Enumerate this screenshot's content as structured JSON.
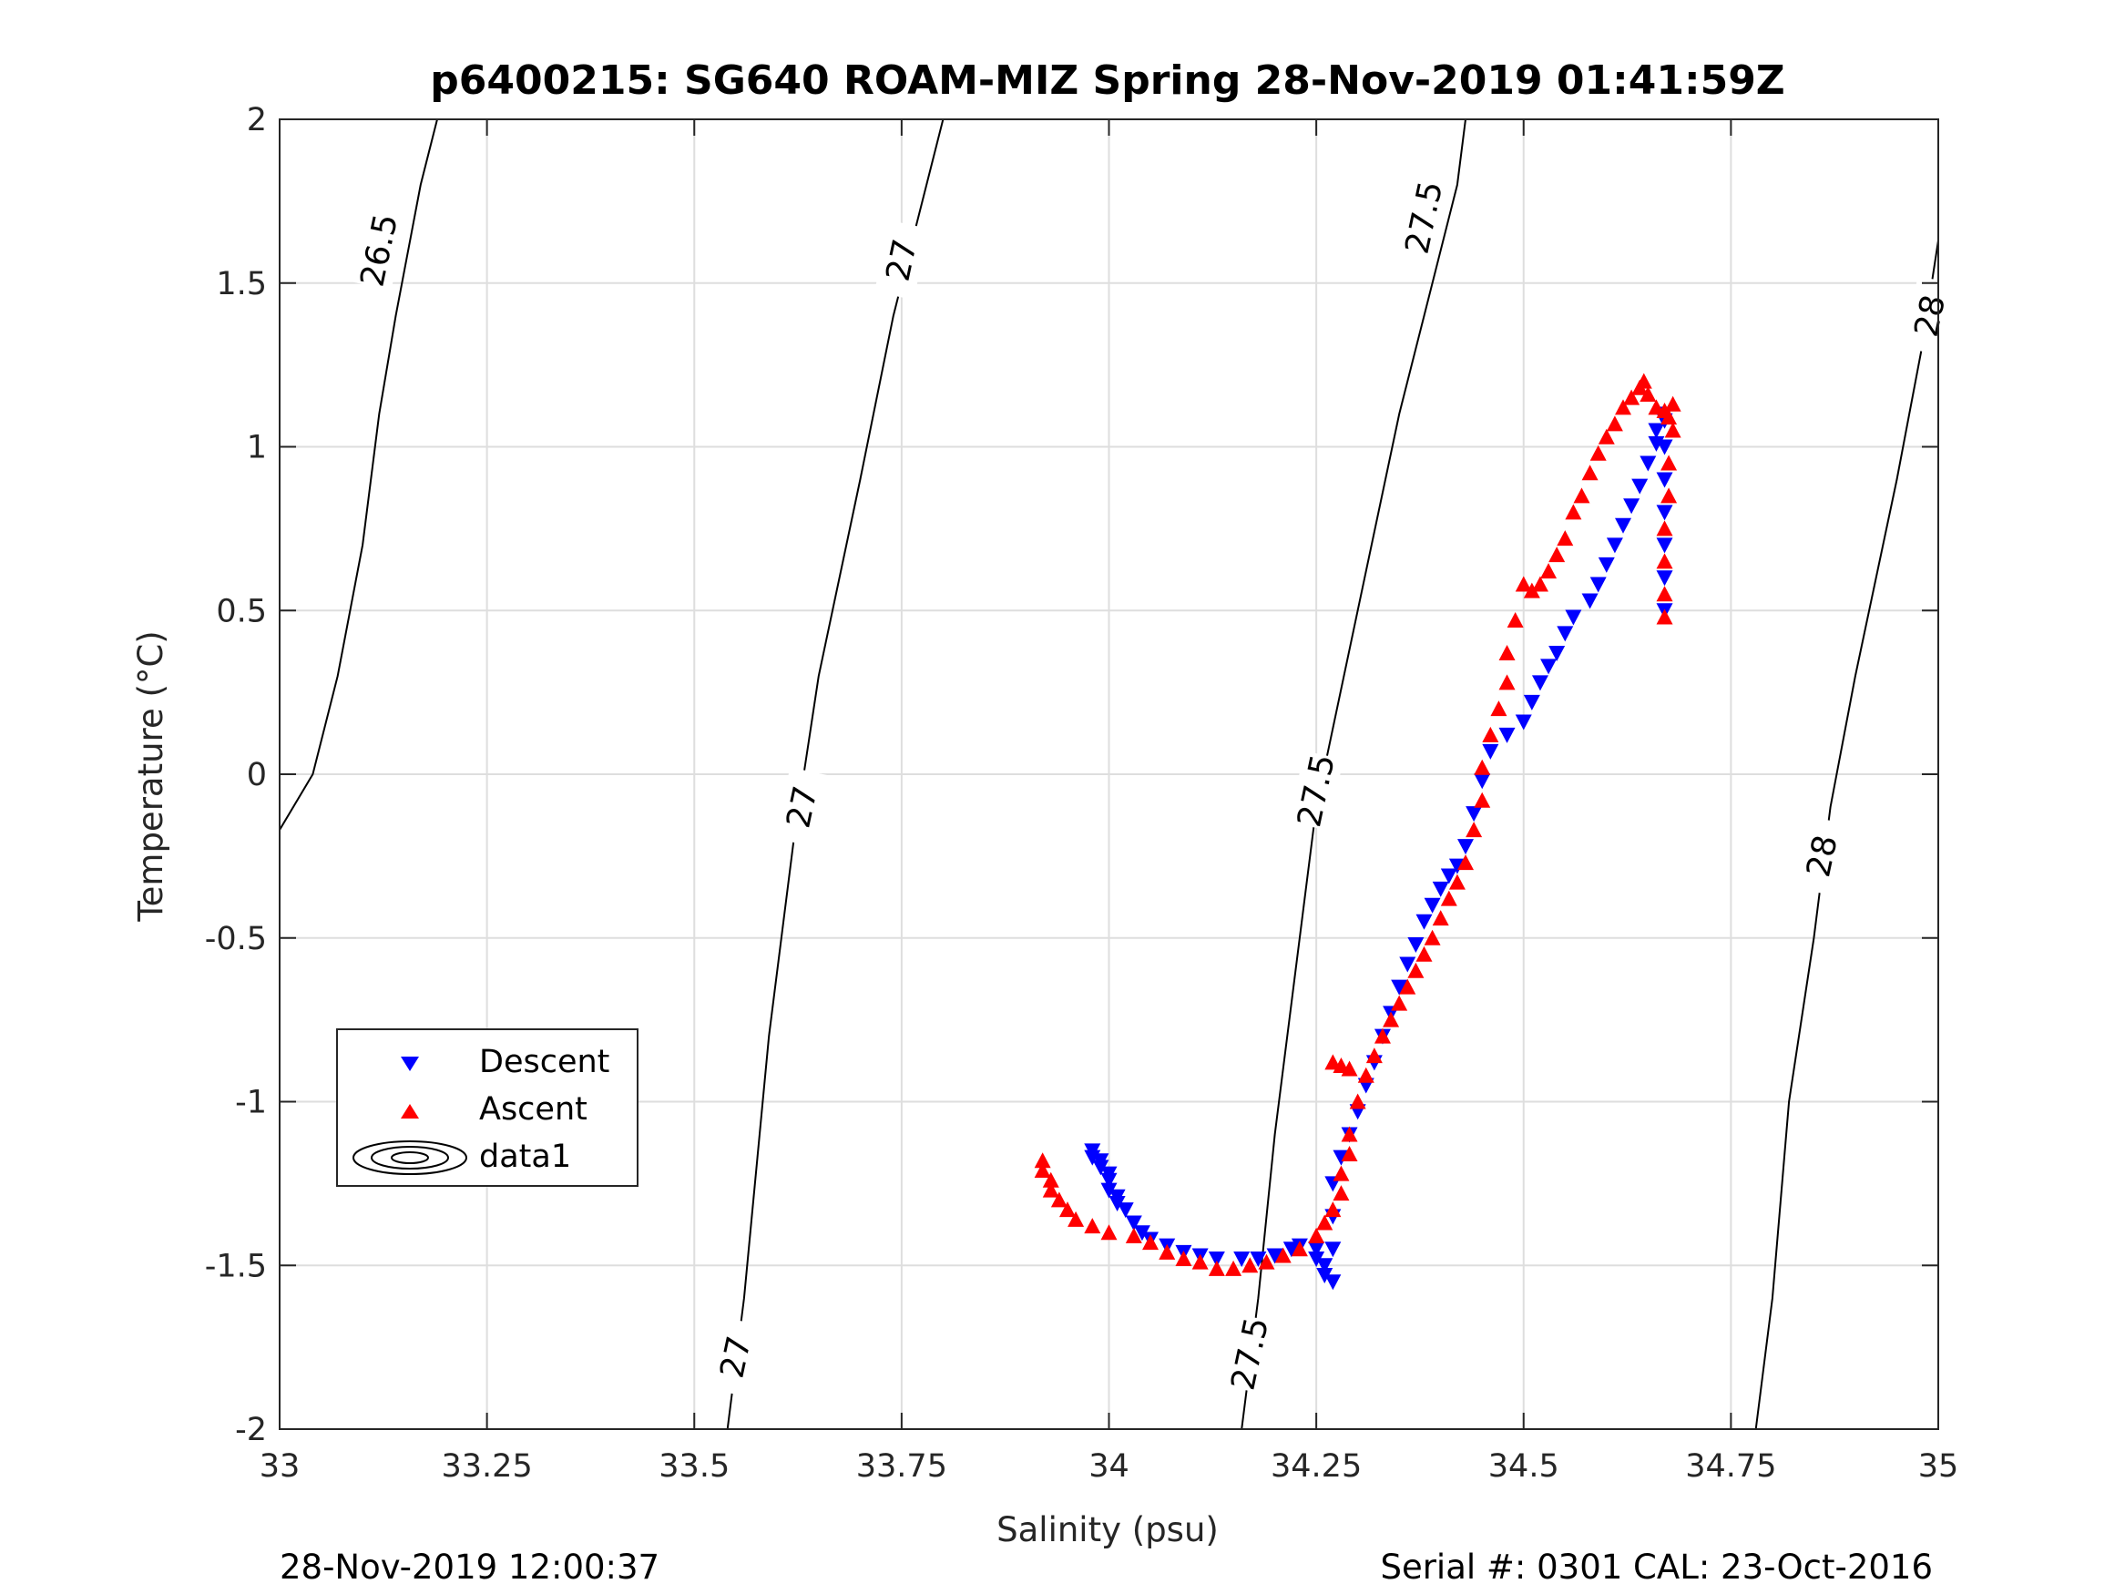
{
  "chart_data": {
    "type": "scatter",
    "title": "p6400215: SG640 ROAM-MIZ Spring 28-Nov-2019 01:41:59Z",
    "xlabel": "Salinity (psu)",
    "ylabel": "Temperature (°C)",
    "xlim": [
      33,
      35
    ],
    "ylim": [
      -2,
      2
    ],
    "grid": true,
    "xticks": [
      33,
      33.25,
      33.5,
      33.75,
      34,
      34.25,
      34.5,
      34.75,
      35
    ],
    "xtick_labels": [
      "33",
      "33.25",
      "33.5",
      "33.75",
      "34",
      "34.25",
      "34.5",
      "34.75",
      "35"
    ],
    "yticks": [
      2,
      1.5,
      1,
      0.5,
      0,
      -0.5,
      -1,
      -1.5,
      -2
    ],
    "ytick_labels": [
      "2",
      "1.5",
      "1",
      "0.5",
      "0",
      "-0.5",
      "-1",
      "-1.5",
      "-2"
    ],
    "legend": {
      "placement": "lower-left",
      "entries": [
        "Descent",
        "Ascent",
        "data1"
      ]
    },
    "density_contours": [
      {
        "label": "26.5",
        "points": [
          [
            33.0,
            -0.17
          ],
          [
            33.04,
            0.0
          ],
          [
            33.07,
            0.3
          ],
          [
            33.1,
            0.7
          ],
          [
            33.12,
            1.1
          ],
          [
            33.14,
            1.4
          ],
          [
            33.17,
            1.8
          ],
          [
            33.19,
            2.0
          ]
        ]
      },
      {
        "label": "27",
        "points": [
          [
            33.54,
            -2.0
          ],
          [
            33.56,
            -1.6
          ],
          [
            33.59,
            -0.8
          ],
          [
            33.62,
            -0.2
          ],
          [
            33.65,
            0.3
          ],
          [
            33.7,
            0.9
          ],
          [
            33.74,
            1.4
          ],
          [
            33.78,
            1.8
          ],
          [
            33.8,
            2.0
          ]
        ]
      },
      {
        "label": "27.5",
        "points": [
          [
            34.16,
            -2.0
          ],
          [
            34.18,
            -1.6
          ],
          [
            34.2,
            -1.1
          ],
          [
            34.23,
            -0.5
          ],
          [
            34.25,
            -0.1
          ],
          [
            34.3,
            0.5
          ],
          [
            34.35,
            1.1
          ],
          [
            34.38,
            1.4
          ],
          [
            34.42,
            1.8
          ],
          [
            34.43,
            2.0
          ]
        ]
      },
      {
        "label": "28",
        "points": [
          [
            34.78,
            -2.0
          ],
          [
            34.8,
            -1.6
          ],
          [
            34.82,
            -1.0
          ],
          [
            34.85,
            -0.5
          ],
          [
            34.87,
            -0.1
          ],
          [
            34.9,
            0.3
          ],
          [
            34.95,
            0.9
          ],
          [
            34.98,
            1.3
          ],
          [
            35.0,
            1.63
          ]
        ]
      }
    ],
    "contour_labels": [
      {
        "text": "26.5",
        "x": 33.12,
        "y": 1.6
      },
      {
        "text": "27",
        "x": 33.75,
        "y": 1.57
      },
      {
        "text": "27",
        "x": 33.63,
        "y": -0.1
      },
      {
        "text": "27",
        "x": 33.55,
        "y": -1.78
      },
      {
        "text": "27.5",
        "x": 34.38,
        "y": 1.7
      },
      {
        "text": "27.5",
        "x": 34.25,
        "y": -0.05
      },
      {
        "text": "27.5",
        "x": 34.17,
        "y": -1.77
      },
      {
        "text": "28",
        "x": 34.99,
        "y": 1.4
      },
      {
        "text": "28",
        "x": 34.86,
        "y": -0.25
      }
    ],
    "series": [
      {
        "name": "Descent",
        "marker": "triangle-down",
        "color": "#0000ff",
        "points": [
          [
            33.98,
            -1.15
          ],
          [
            33.98,
            -1.17
          ],
          [
            33.99,
            -1.18
          ],
          [
            33.99,
            -1.2
          ],
          [
            34.0,
            -1.22
          ],
          [
            34.0,
            -1.24
          ],
          [
            34.0,
            -1.27
          ],
          [
            34.01,
            -1.29
          ],
          [
            34.01,
            -1.31
          ],
          [
            34.02,
            -1.33
          ],
          [
            34.03,
            -1.37
          ],
          [
            34.04,
            -1.4
          ],
          [
            34.05,
            -1.42
          ],
          [
            34.07,
            -1.44
          ],
          [
            34.09,
            -1.46
          ],
          [
            34.11,
            -1.47
          ],
          [
            34.13,
            -1.48
          ],
          [
            34.16,
            -1.48
          ],
          [
            34.18,
            -1.48
          ],
          [
            34.2,
            -1.47
          ],
          [
            34.22,
            -1.45
          ],
          [
            34.23,
            -1.44
          ],
          [
            34.25,
            -1.45
          ],
          [
            34.25,
            -1.48
          ],
          [
            34.26,
            -1.5
          ],
          [
            34.26,
            -1.53
          ],
          [
            34.27,
            -1.55
          ],
          [
            34.27,
            -1.45
          ],
          [
            34.27,
            -1.35
          ],
          [
            34.27,
            -1.25
          ],
          [
            34.28,
            -1.17
          ],
          [
            34.29,
            -1.1
          ],
          [
            34.3,
            -1.03
          ],
          [
            34.31,
            -0.95
          ],
          [
            34.32,
            -0.88
          ],
          [
            34.33,
            -0.8
          ],
          [
            34.34,
            -0.73
          ],
          [
            34.35,
            -0.65
          ],
          [
            34.36,
            -0.58
          ],
          [
            34.37,
            -0.52
          ],
          [
            34.38,
            -0.45
          ],
          [
            34.39,
            -0.4
          ],
          [
            34.4,
            -0.35
          ],
          [
            34.41,
            -0.31
          ],
          [
            34.42,
            -0.28
          ],
          [
            34.43,
            -0.22
          ],
          [
            34.44,
            -0.12
          ],
          [
            34.45,
            -0.02
          ],
          [
            34.46,
            0.07
          ],
          [
            34.48,
            0.12
          ],
          [
            34.5,
            0.16
          ],
          [
            34.51,
            0.22
          ],
          [
            34.52,
            0.28
          ],
          [
            34.53,
            0.33
          ],
          [
            34.54,
            0.37
          ],
          [
            34.55,
            0.43
          ],
          [
            34.56,
            0.48
          ],
          [
            34.58,
            0.53
          ],
          [
            34.59,
            0.58
          ],
          [
            34.6,
            0.64
          ],
          [
            34.61,
            0.7
          ],
          [
            34.62,
            0.76
          ],
          [
            34.63,
            0.82
          ],
          [
            34.64,
            0.88
          ],
          [
            34.65,
            0.95
          ],
          [
            34.66,
            1.01
          ],
          [
            34.66,
            1.05
          ],
          [
            34.67,
            1.08
          ],
          [
            34.67,
            1.1
          ],
          [
            34.67,
            1.0
          ],
          [
            34.67,
            0.9
          ],
          [
            34.67,
            0.8
          ],
          [
            34.67,
            0.7
          ],
          [
            34.67,
            0.6
          ],
          [
            34.67,
            0.5
          ]
        ]
      },
      {
        "name": "Ascent",
        "marker": "triangle-up",
        "color": "#ff0000",
        "points": [
          [
            33.92,
            -1.18
          ],
          [
            33.92,
            -1.21
          ],
          [
            33.93,
            -1.24
          ],
          [
            33.93,
            -1.27
          ],
          [
            33.94,
            -1.3
          ],
          [
            33.95,
            -1.33
          ],
          [
            33.96,
            -1.36
          ],
          [
            33.98,
            -1.38
          ],
          [
            34.0,
            -1.4
          ],
          [
            34.03,
            -1.41
          ],
          [
            34.05,
            -1.43
          ],
          [
            34.07,
            -1.46
          ],
          [
            34.09,
            -1.48
          ],
          [
            34.11,
            -1.49
          ],
          [
            34.13,
            -1.51
          ],
          [
            34.15,
            -1.51
          ],
          [
            34.17,
            -1.5
          ],
          [
            34.19,
            -1.49
          ],
          [
            34.21,
            -1.47
          ],
          [
            34.23,
            -1.45
          ],
          [
            34.25,
            -1.41
          ],
          [
            34.26,
            -1.37
          ],
          [
            34.27,
            -1.33
          ],
          [
            34.28,
            -1.28
          ],
          [
            34.28,
            -1.22
          ],
          [
            34.29,
            -1.16
          ],
          [
            34.29,
            -1.1
          ],
          [
            34.27,
            -0.88
          ],
          [
            34.28,
            -0.89
          ],
          [
            34.29,
            -0.9
          ],
          [
            34.3,
            -1.0
          ],
          [
            34.31,
            -0.92
          ],
          [
            34.32,
            -0.86
          ],
          [
            34.33,
            -0.8
          ],
          [
            34.34,
            -0.75
          ],
          [
            34.35,
            -0.7
          ],
          [
            34.36,
            -0.65
          ],
          [
            34.37,
            -0.6
          ],
          [
            34.38,
            -0.55
          ],
          [
            34.39,
            -0.5
          ],
          [
            34.4,
            -0.44
          ],
          [
            34.41,
            -0.38
          ],
          [
            34.42,
            -0.33
          ],
          [
            34.43,
            -0.27
          ],
          [
            34.44,
            -0.17
          ],
          [
            34.45,
            -0.08
          ],
          [
            34.45,
            0.02
          ],
          [
            34.46,
            0.12
          ],
          [
            34.47,
            0.2
          ],
          [
            34.48,
            0.28
          ],
          [
            34.48,
            0.37
          ],
          [
            34.49,
            0.47
          ],
          [
            34.5,
            0.58
          ],
          [
            34.51,
            0.56
          ],
          [
            34.52,
            0.58
          ],
          [
            34.53,
            0.62
          ],
          [
            34.54,
            0.67
          ],
          [
            34.55,
            0.72
          ],
          [
            34.56,
            0.8
          ],
          [
            34.57,
            0.85
          ],
          [
            34.58,
            0.92
          ],
          [
            34.59,
            0.98
          ],
          [
            34.6,
            1.03
          ],
          [
            34.61,
            1.07
          ],
          [
            34.62,
            1.12
          ],
          [
            34.63,
            1.15
          ],
          [
            34.64,
            1.18
          ],
          [
            34.645,
            1.2
          ],
          [
            34.65,
            1.16
          ],
          [
            34.66,
            1.12
          ],
          [
            34.67,
            1.11
          ],
          [
            34.675,
            1.09
          ],
          [
            34.68,
            1.13
          ],
          [
            34.68,
            1.05
          ],
          [
            34.675,
            0.95
          ],
          [
            34.675,
            0.85
          ],
          [
            34.67,
            0.75
          ],
          [
            34.67,
            0.65
          ],
          [
            34.67,
            0.55
          ],
          [
            34.67,
            0.48
          ]
        ]
      }
    ]
  },
  "footer": {
    "left": "28-Nov-2019 12:00:37",
    "right": "Serial #: 0301  CAL: 23-Oct-2016"
  }
}
